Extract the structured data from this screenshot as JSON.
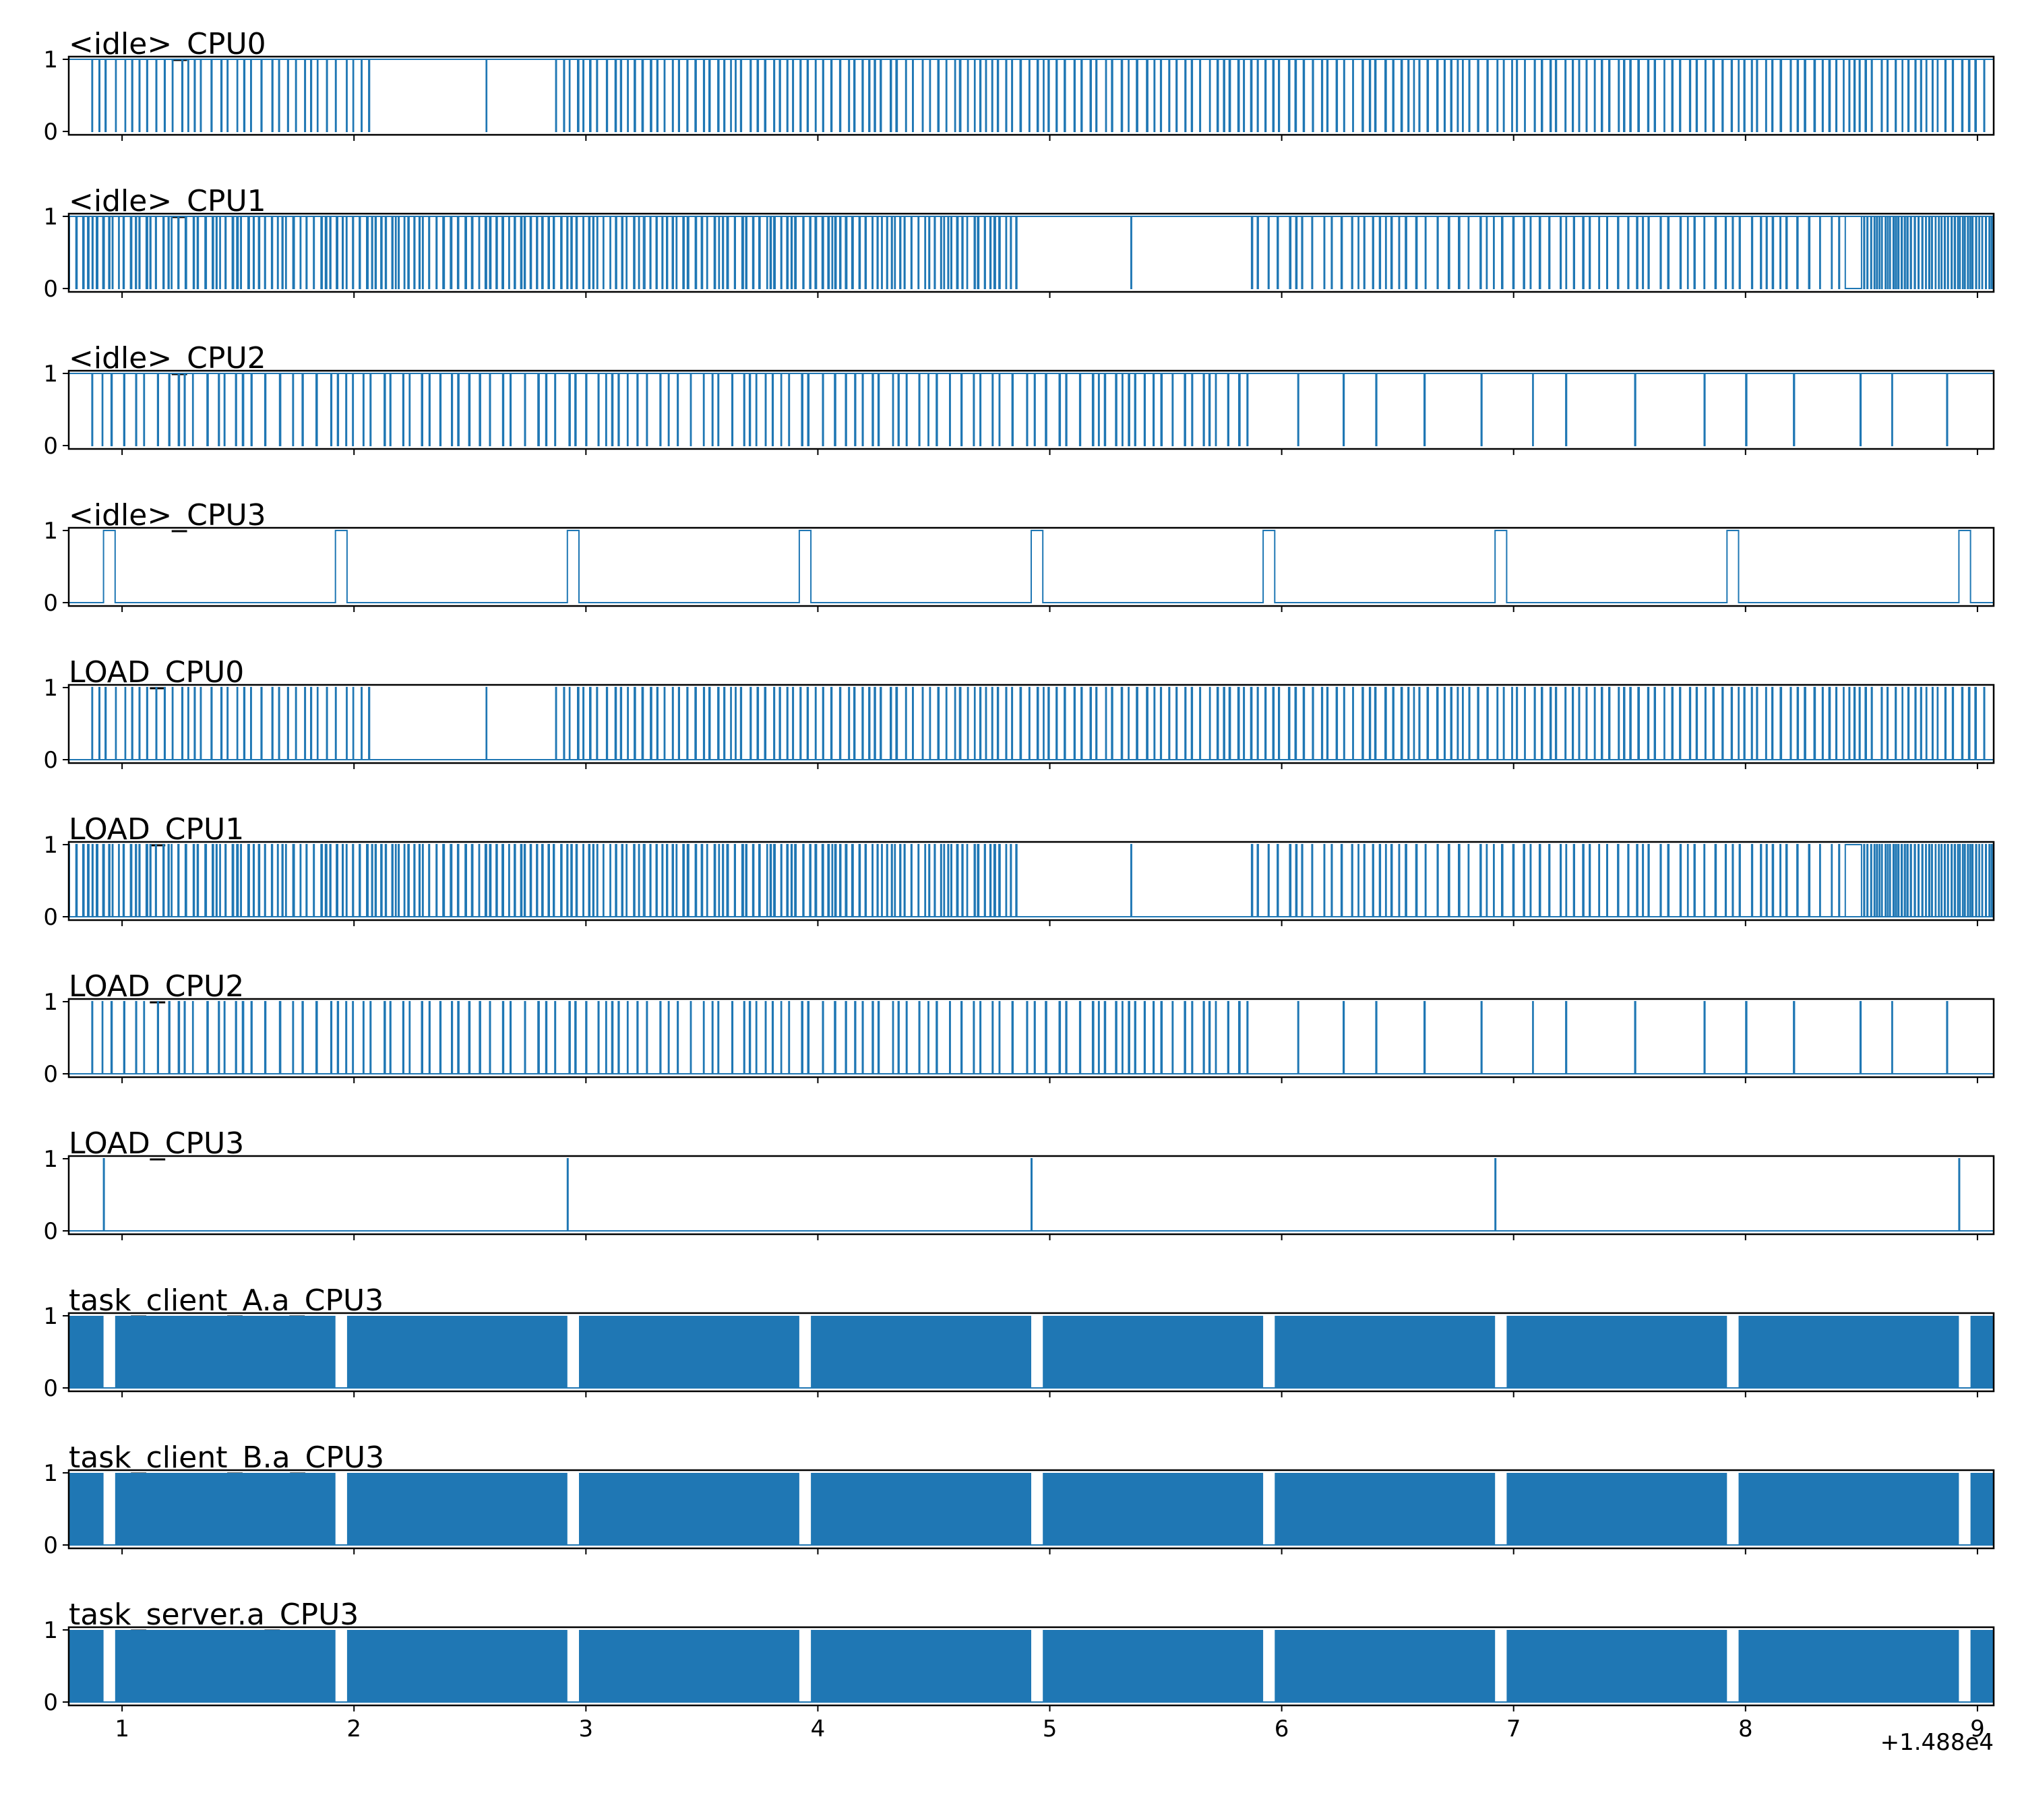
{
  "chart_data": {
    "type": "line",
    "layout": "11 stacked step subplots sharing the x axis",
    "x_offset_label": "+1.488e4",
    "xlim": [
      0.77,
      9.07
    ],
    "x_ticks": [
      1,
      2,
      3,
      4,
      5,
      6,
      7,
      8,
      9
    ],
    "ylim": [
      0,
      1
    ],
    "y_ticks": [
      0,
      1
    ],
    "color": "#1f77b4",
    "grid": false,
    "legend": "none",
    "panels": [
      {
        "title": "<idle>_CPU0",
        "pattern": "dense pulse train from 0.87 to 2.10 and 2.87 to 9.07 at about 25 Hz, gap 2.10-2.87 with one spike at 2.57",
        "signal": "idle"
      },
      {
        "title": "<idle>_CPU1",
        "pattern": "very dense pulse train 0.77-4.87, gaps 4.87-5.87 with one spike at 5.35, sparse 5.87-8.43, low plateau 8.43-8.50, very dense 8.50-9.07",
        "signal": "idle"
      },
      {
        "title": "<idle>_CPU2",
        "pattern": "irregular pulse train 0.87-5.87 dense, sparse 5.87-9.07",
        "signal": "idle"
      },
      {
        "title": "<idle>_CPU3",
        "pattern": "high for 0.05 s once per second",
        "pulses": [
          [
            0.92,
            0.97
          ],
          [
            1.92,
            1.97
          ],
          [
            2.92,
            2.97
          ],
          [
            3.92,
            3.97
          ],
          [
            4.92,
            4.97
          ],
          [
            5.92,
            5.97
          ],
          [
            6.92,
            6.97
          ],
          [
            7.92,
            7.97
          ],
          [
            8.92,
            8.97
          ]
        ],
        "signal": "pulse"
      },
      {
        "title": "LOAD_CPU0",
        "pattern": "mirror of <idle>_CPU0",
        "signal": "load"
      },
      {
        "title": "LOAD_CPU1",
        "pattern": "mirror of <idle>_CPU1 with high plateau 8.43-8.50",
        "signal": "load"
      },
      {
        "title": "LOAD_CPU2",
        "pattern": "mirror of <idle>_CPU2",
        "signal": "load"
      },
      {
        "title": "LOAD_CPU3",
        "pattern": "single spikes at each whole second from 0.92 every 2 s",
        "spikes": [
          0.92,
          2.92,
          4.92,
          6.92,
          8.92
        ],
        "signal": "spike"
      },
      {
        "title": "task_client_A.a_CPU3",
        "pattern": "high except short gaps once per second",
        "gaps": [
          [
            0.92,
            0.97
          ],
          [
            1.92,
            1.97
          ],
          [
            2.92,
            2.97
          ],
          [
            3.92,
            3.97
          ],
          [
            4.92,
            4.97
          ],
          [
            5.92,
            5.97
          ],
          [
            6.92,
            6.97
          ],
          [
            7.92,
            7.97
          ],
          [
            8.92,
            8.97
          ]
        ],
        "signal": "task"
      },
      {
        "title": "task_client_B.a_CPU3",
        "pattern": "high except short gaps once per second",
        "gaps": [
          [
            0.92,
            0.97
          ],
          [
            1.92,
            1.97
          ],
          [
            2.92,
            2.97
          ],
          [
            3.92,
            3.97
          ],
          [
            4.92,
            4.97
          ],
          [
            5.92,
            5.97
          ],
          [
            6.92,
            6.97
          ],
          [
            7.92,
            7.97
          ],
          [
            8.92,
            8.97
          ]
        ],
        "signal": "task"
      },
      {
        "title": "task_server.a_CPU3",
        "pattern": "high except short gaps once per second",
        "gaps": [
          [
            0.92,
            0.97
          ],
          [
            1.92,
            1.97
          ],
          [
            2.92,
            2.97
          ],
          [
            3.92,
            3.97
          ],
          [
            4.92,
            4.97
          ],
          [
            5.92,
            5.97
          ],
          [
            6.92,
            6.97
          ],
          [
            7.92,
            7.97
          ],
          [
            8.92,
            8.97
          ]
        ],
        "signal": "task"
      }
    ],
    "idle_cpu0_gap": [
      2.1,
      2.87
    ],
    "idle_cpu0_gap_spike": 2.57,
    "idle_cpu1_gap": [
      4.87,
      5.87
    ],
    "idle_cpu1_gap_spike": 5.35,
    "idle_cpu1_plateau": [
      8.43,
      8.5
    ],
    "idle_cpu2_dense_until": 5.87
  }
}
